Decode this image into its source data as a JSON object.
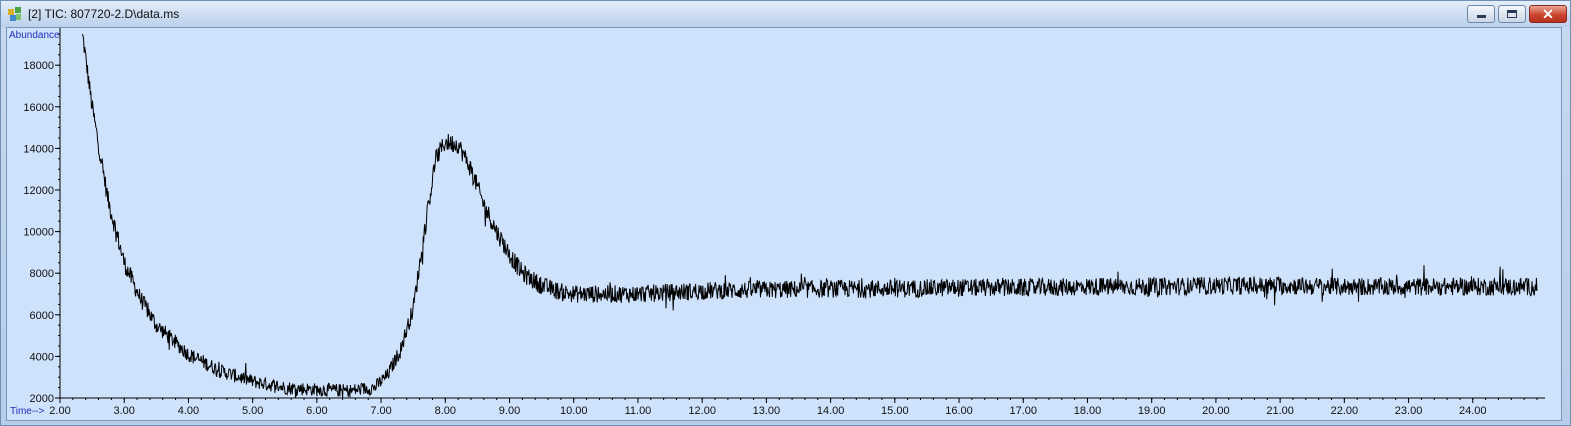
{
  "window": {
    "title": "[2] TIC: 807720-2.D\\data.ms",
    "icon": "chromatogram-app-icon",
    "controls": [
      "minimize-icon",
      "maximize-icon",
      "close-icon"
    ],
    "close_glyph": "✕"
  },
  "chart_data": {
    "type": "line",
    "title": "",
    "xlabel": "Time-->",
    "ylabel": "Abundance",
    "xlim": [
      2.0,
      25.0
    ],
    "ylim": [
      2000,
      19500
    ],
    "x_ticks": [
      2.0,
      3.0,
      4.0,
      5.0,
      6.0,
      7.0,
      8.0,
      9.0,
      10.0,
      11.0,
      12.0,
      13.0,
      14.0,
      15.0,
      16.0,
      17.0,
      18.0,
      19.0,
      20.0,
      21.0,
      22.0,
      23.0,
      24.0
    ],
    "x_tick_labels": [
      "2.00",
      "3.00",
      "4.00",
      "5.00",
      "6.00",
      "7.00",
      "8.00",
      "9.00",
      "10.00",
      "11.00",
      "12.00",
      "13.00",
      "14.00",
      "15.00",
      "16.00",
      "17.00",
      "18.00",
      "19.00",
      "20.00",
      "21.00",
      "22.00",
      "23.00",
      "24.00"
    ],
    "y_ticks": [
      2000,
      4000,
      6000,
      8000,
      10000,
      12000,
      14000,
      16000,
      18000
    ],
    "y_tick_labels": [
      "2000",
      "4000",
      "6000",
      "8000",
      "10000",
      "12000",
      "14000",
      "16000",
      "18000"
    ],
    "series": [
      {
        "color": "#000000",
        "x": [
          2.35,
          2.5,
          2.75,
          3.0,
          3.25,
          3.5,
          3.75,
          4.0,
          4.5,
          5.0,
          5.5,
          6.0,
          6.5,
          6.9,
          7.1,
          7.3,
          7.5,
          7.7,
          7.85,
          8.0,
          8.2,
          8.4,
          8.6,
          8.8,
          9.0,
          9.2,
          9.5,
          9.8,
          10.0,
          10.5,
          11.0,
          12.0,
          13.0,
          14.0,
          15.0,
          16.0,
          17.0,
          18.0,
          19.0,
          20.0,
          21.0,
          22.0,
          23.0,
          24.0,
          25.0
        ],
        "y": [
          19500,
          16000,
          11500,
          8500,
          6800,
          5500,
          4800,
          4100,
          3300,
          2800,
          2500,
          2400,
          2350,
          2500,
          3100,
          4300,
          6300,
          10500,
          13500,
          14300,
          14200,
          13000,
          11300,
          10000,
          8900,
          8000,
          7400,
          7100,
          7000,
          7000,
          7000,
          7150,
          7200,
          7250,
          7250,
          7300,
          7300,
          7350,
          7350,
          7400,
          7400,
          7350,
          7350,
          7350,
          7350
        ],
        "noise_amplitude": 450
      }
    ],
    "grid": false,
    "legend": "none"
  }
}
